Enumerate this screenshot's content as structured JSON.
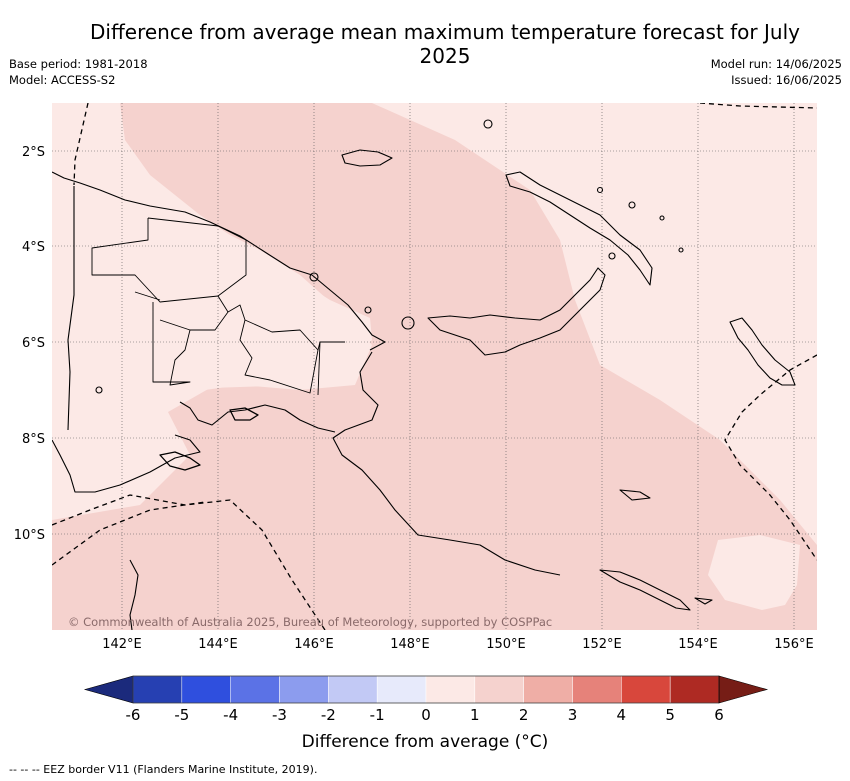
{
  "title": "Difference from average mean maximum temperature forecast for July 2025",
  "meta": {
    "base_period": "Base period: 1981-2018",
    "model": "Model: ACCESS-S2",
    "model_run": "Model run: 14/06/2025",
    "issued": "Issued: 16/06/2025"
  },
  "map": {
    "region": "Papua New Guinea",
    "lon_range": [
      140.5,
      156.5
    ],
    "lat_range": [
      -12.0,
      -1.0
    ],
    "lon_ticks": [
      "142°E",
      "144°E",
      "146°E",
      "148°E",
      "150°E",
      "152°E",
      "154°E",
      "156°E"
    ],
    "lat_ticks": [
      "2°S",
      "4°S",
      "6°S",
      "8°S",
      "10°S"
    ],
    "copyright": "© Commonwealth of Australia 2025, Bureau of Meteorology, supported by COSPPac",
    "zone_colors": {
      "0_to_1": "#fce9e6",
      "1_to_2": "#f5d2ce"
    }
  },
  "colorbar": {
    "ticks": [
      "-6",
      "-5",
      "-4",
      "-3",
      "-2",
      "-1",
      "0",
      "1",
      "2",
      "3",
      "4",
      "5",
      "6"
    ],
    "colors": [
      "#1b2a7c",
      "#2640b2",
      "#2f4fde",
      "#5b72e6",
      "#8c9cee",
      "#c2c9f5",
      "#e7eafb",
      "#fce9e6",
      "#f5d2ce",
      "#efaea6",
      "#e6827a",
      "#d8473c",
      "#ae2a23",
      "#761d16"
    ],
    "title": "Difference from average (°C)"
  },
  "footnote": "-- -- -- EEZ border V11 (Flanders Marine Institute, 2019)."
}
